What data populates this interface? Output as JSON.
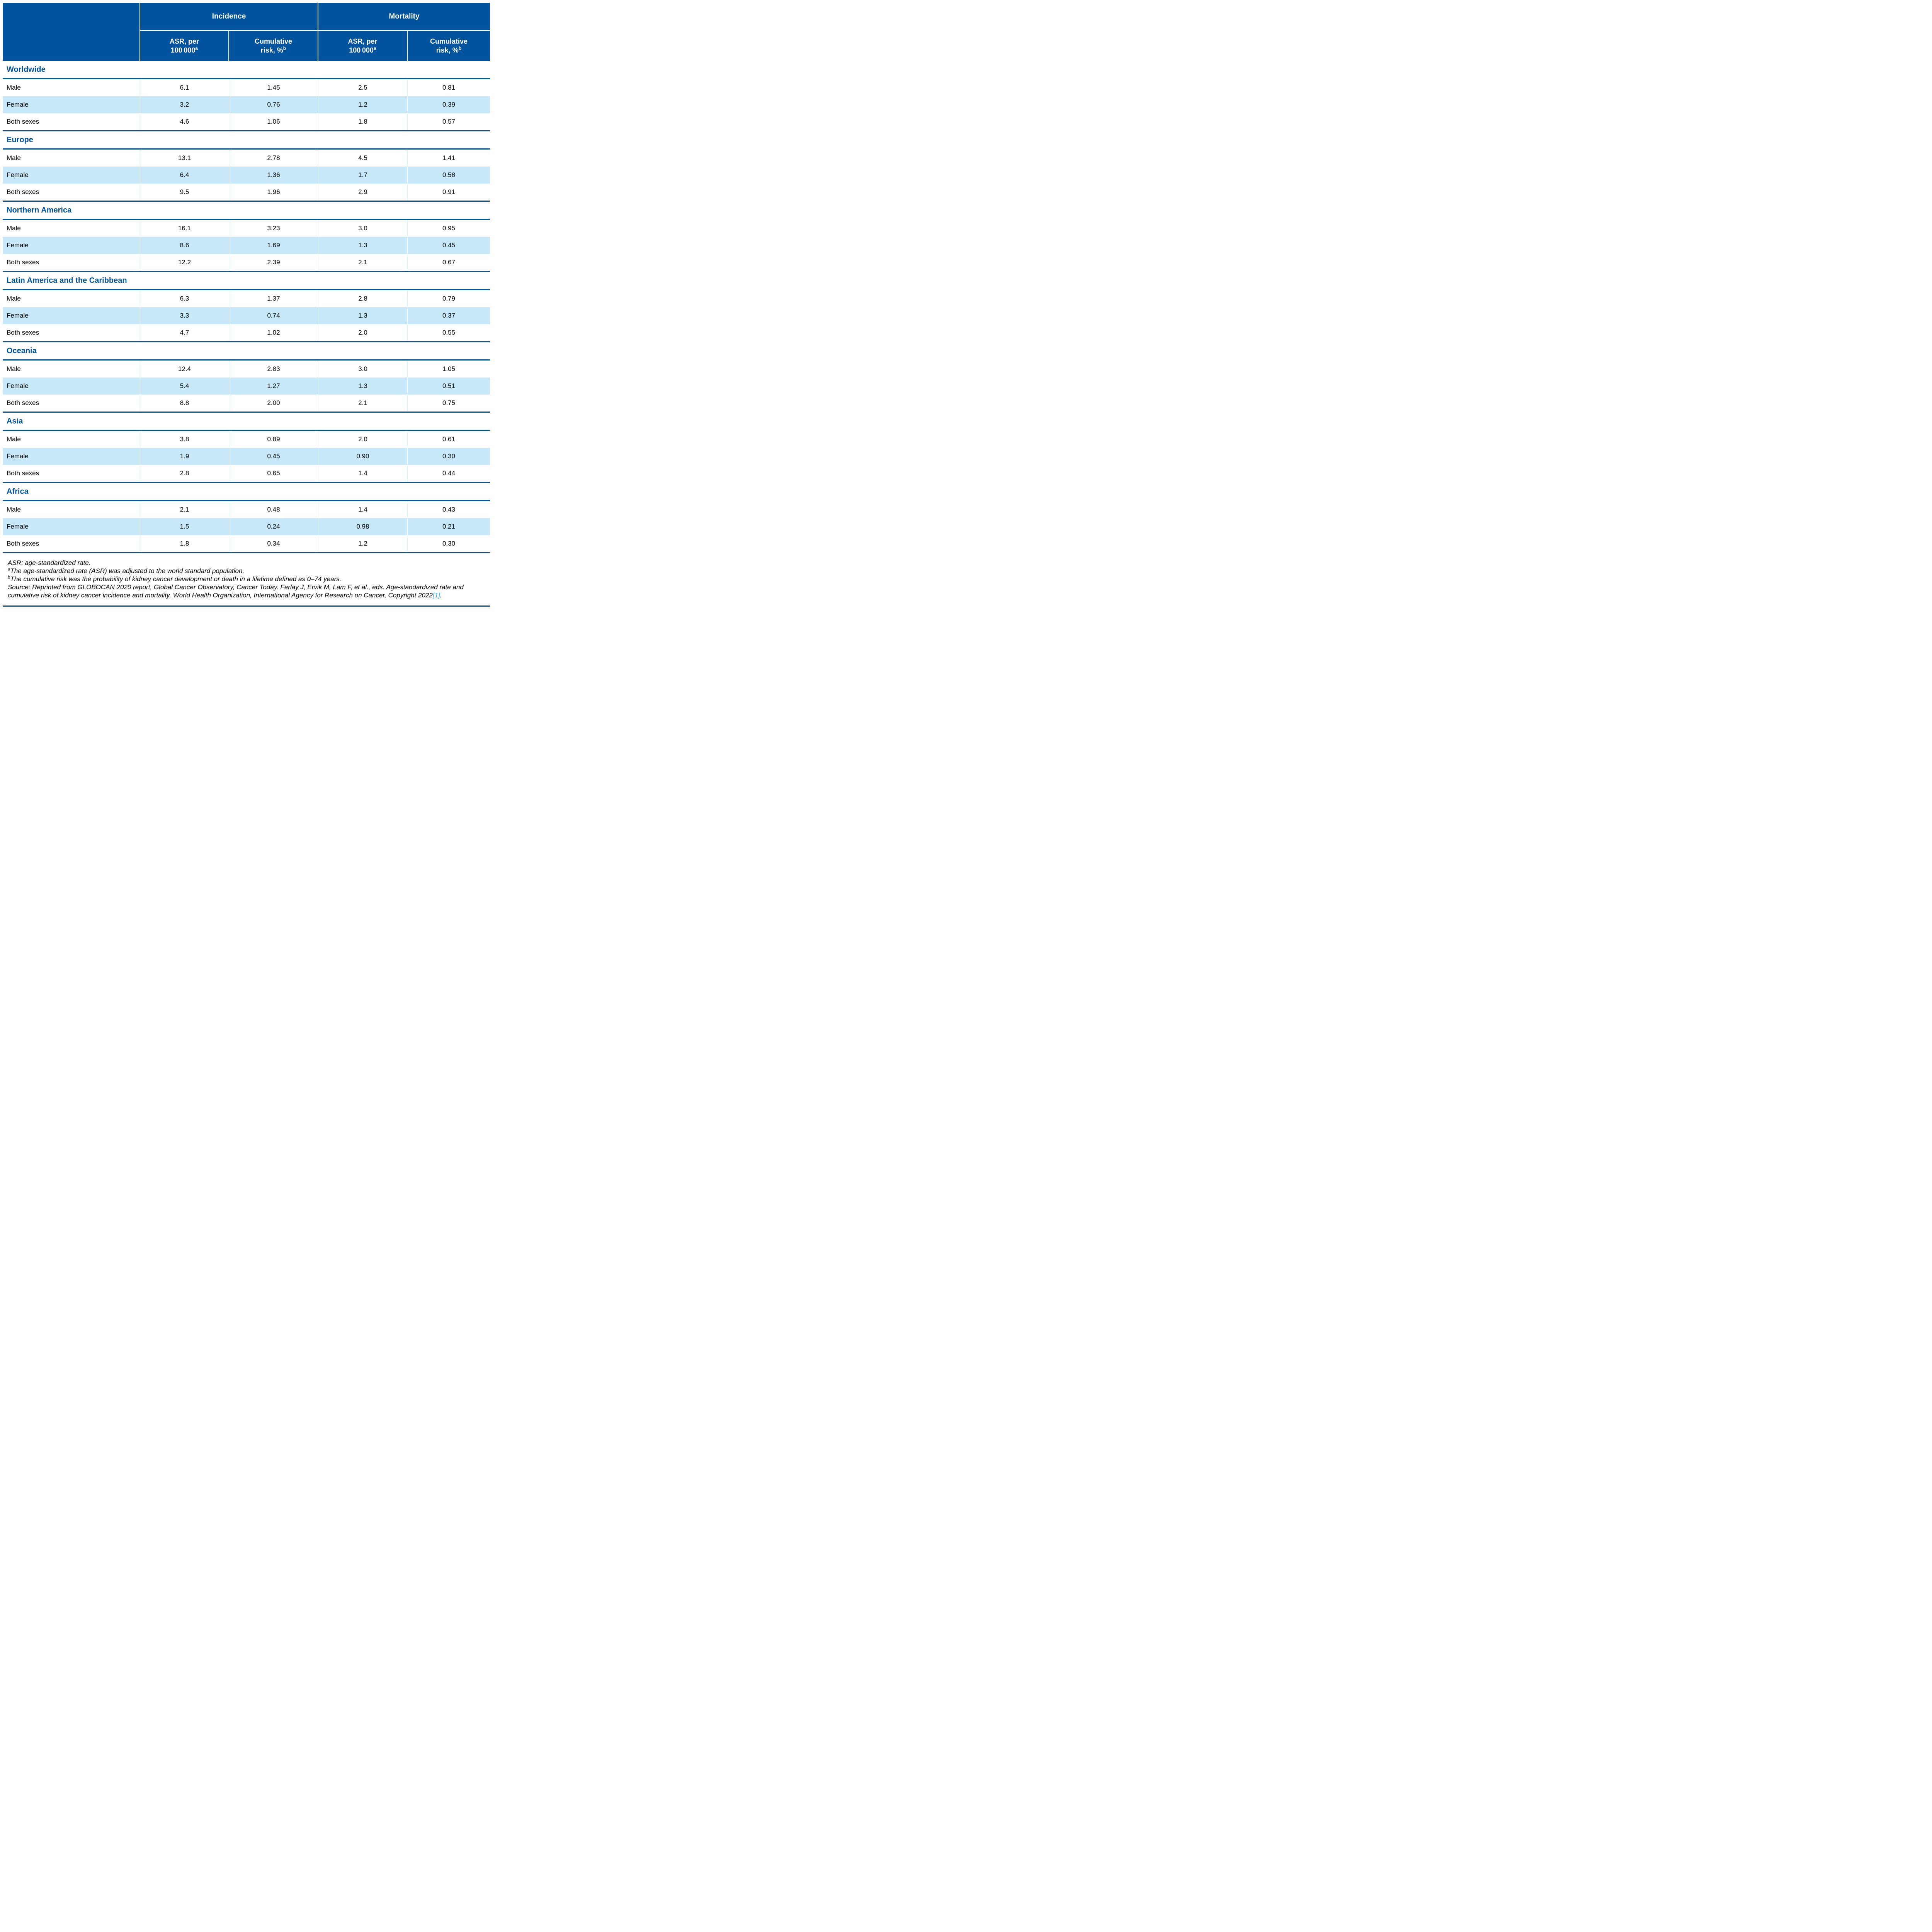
{
  "colors": {
    "header_bg": "#01539E",
    "rule": "#0B559D",
    "section_title_text": "#01539E",
    "female_row_bg": "#C6E8F8",
    "column_separator_on_white": "#D9EEFB",
    "citation_link": "#29ABE2"
  },
  "header": {
    "groups": [
      {
        "label": "Incidence"
      },
      {
        "label": "Mortality"
      }
    ],
    "sub_columns": [
      {
        "line1": "ASR, per",
        "line2": "100 000",
        "sup": "a"
      },
      {
        "line1": "Cumulative",
        "line2": "risk, %",
        "sup": "b"
      },
      {
        "line1": "ASR, per",
        "line2": "100 000",
        "sup": "a"
      },
      {
        "line1": "Cumulative",
        "line2": "risk, %",
        "sup": "b"
      }
    ]
  },
  "sections": [
    {
      "name": "Worldwide",
      "rows": [
        {
          "label": "Male",
          "values": [
            "6.1",
            "1.45",
            "2.5",
            "0.81"
          ]
        },
        {
          "label": "Female",
          "values": [
            "3.2",
            "0.76",
            "1.2",
            "0.39"
          ]
        },
        {
          "label": "Both sexes",
          "values": [
            "4.6",
            "1.06",
            "1.8",
            "0.57"
          ]
        }
      ]
    },
    {
      "name": "Europe",
      "rows": [
        {
          "label": "Male",
          "values": [
            "13.1",
            "2.78",
            "4.5",
            "1.41"
          ]
        },
        {
          "label": "Female",
          "values": [
            "6.4",
            "1.36",
            "1.7",
            "0.58"
          ]
        },
        {
          "label": "Both sexes",
          "values": [
            "9.5",
            "1.96",
            "2.9",
            "0.91"
          ]
        }
      ]
    },
    {
      "name": "Northern America",
      "rows": [
        {
          "label": "Male",
          "values": [
            "16.1",
            "3.23",
            "3.0",
            "0.95"
          ]
        },
        {
          "label": "Female",
          "values": [
            "8.6",
            "1.69",
            "1.3",
            "0.45"
          ]
        },
        {
          "label": "Both sexes",
          "values": [
            "12.2",
            "2.39",
            "2.1",
            "0.67"
          ]
        }
      ]
    },
    {
      "name": "Latin America and the Caribbean",
      "rows": [
        {
          "label": "Male",
          "values": [
            "6.3",
            "1.37",
            "2.8",
            "0.79"
          ]
        },
        {
          "label": "Female",
          "values": [
            "3.3",
            "0.74",
            "1.3",
            "0.37"
          ]
        },
        {
          "label": "Both sexes",
          "values": [
            "4.7",
            "1.02",
            "2.0",
            "0.55"
          ]
        }
      ]
    },
    {
      "name": "Oceania",
      "rows": [
        {
          "label": "Male",
          "values": [
            "12.4",
            "2.83",
            "3.0",
            "1.05"
          ]
        },
        {
          "label": "Female",
          "values": [
            "5.4",
            "1.27",
            "1.3",
            "0.51"
          ]
        },
        {
          "label": "Both sexes",
          "values": [
            "8.8",
            "2.00",
            "2.1",
            "0.75"
          ]
        }
      ]
    },
    {
      "name": "Asia",
      "rows": [
        {
          "label": "Male",
          "values": [
            "3.8",
            "0.89",
            "2.0",
            "0.61"
          ]
        },
        {
          "label": "Female",
          "values": [
            "1.9",
            "0.45",
            "0.90",
            "0.30"
          ]
        },
        {
          "label": "Both sexes",
          "values": [
            "2.8",
            "0.65",
            "1.4",
            "0.44"
          ]
        }
      ]
    },
    {
      "name": "Africa",
      "rows": [
        {
          "label": "Male",
          "values": [
            "2.1",
            "0.48",
            "1.4",
            "0.43"
          ]
        },
        {
          "label": "Female",
          "values": [
            "1.5",
            "0.24",
            "0.98",
            "0.21"
          ]
        },
        {
          "label": "Both sexes",
          "values": [
            "1.8",
            "0.34",
            "1.2",
            "0.30"
          ]
        }
      ]
    }
  ],
  "footnotes": {
    "abbrev": "ASR: age-standardized rate.",
    "note_a_sup": "a",
    "note_a": "The age-standardized rate (ASR) was adjusted to the world standard population.",
    "note_b_sup": "b",
    "note_b": "The cumulative risk was the probability of kidney cancer development or death in a lifetime defined as 0–74 years.",
    "source_text": "Source: Reprinted from GLOBOCAN 2020 report, Global Cancer Observatory, Cancer Today. Ferlay J, Ervik M, Lam F, et al., eds. Age-standardized rate and cumulative risk of kidney cancer incidence and mortality. World Health Organization, International Agency for Research on Cancer, Copyright 2022",
    "source_ref": "[1]",
    "source_suffix": "."
  }
}
